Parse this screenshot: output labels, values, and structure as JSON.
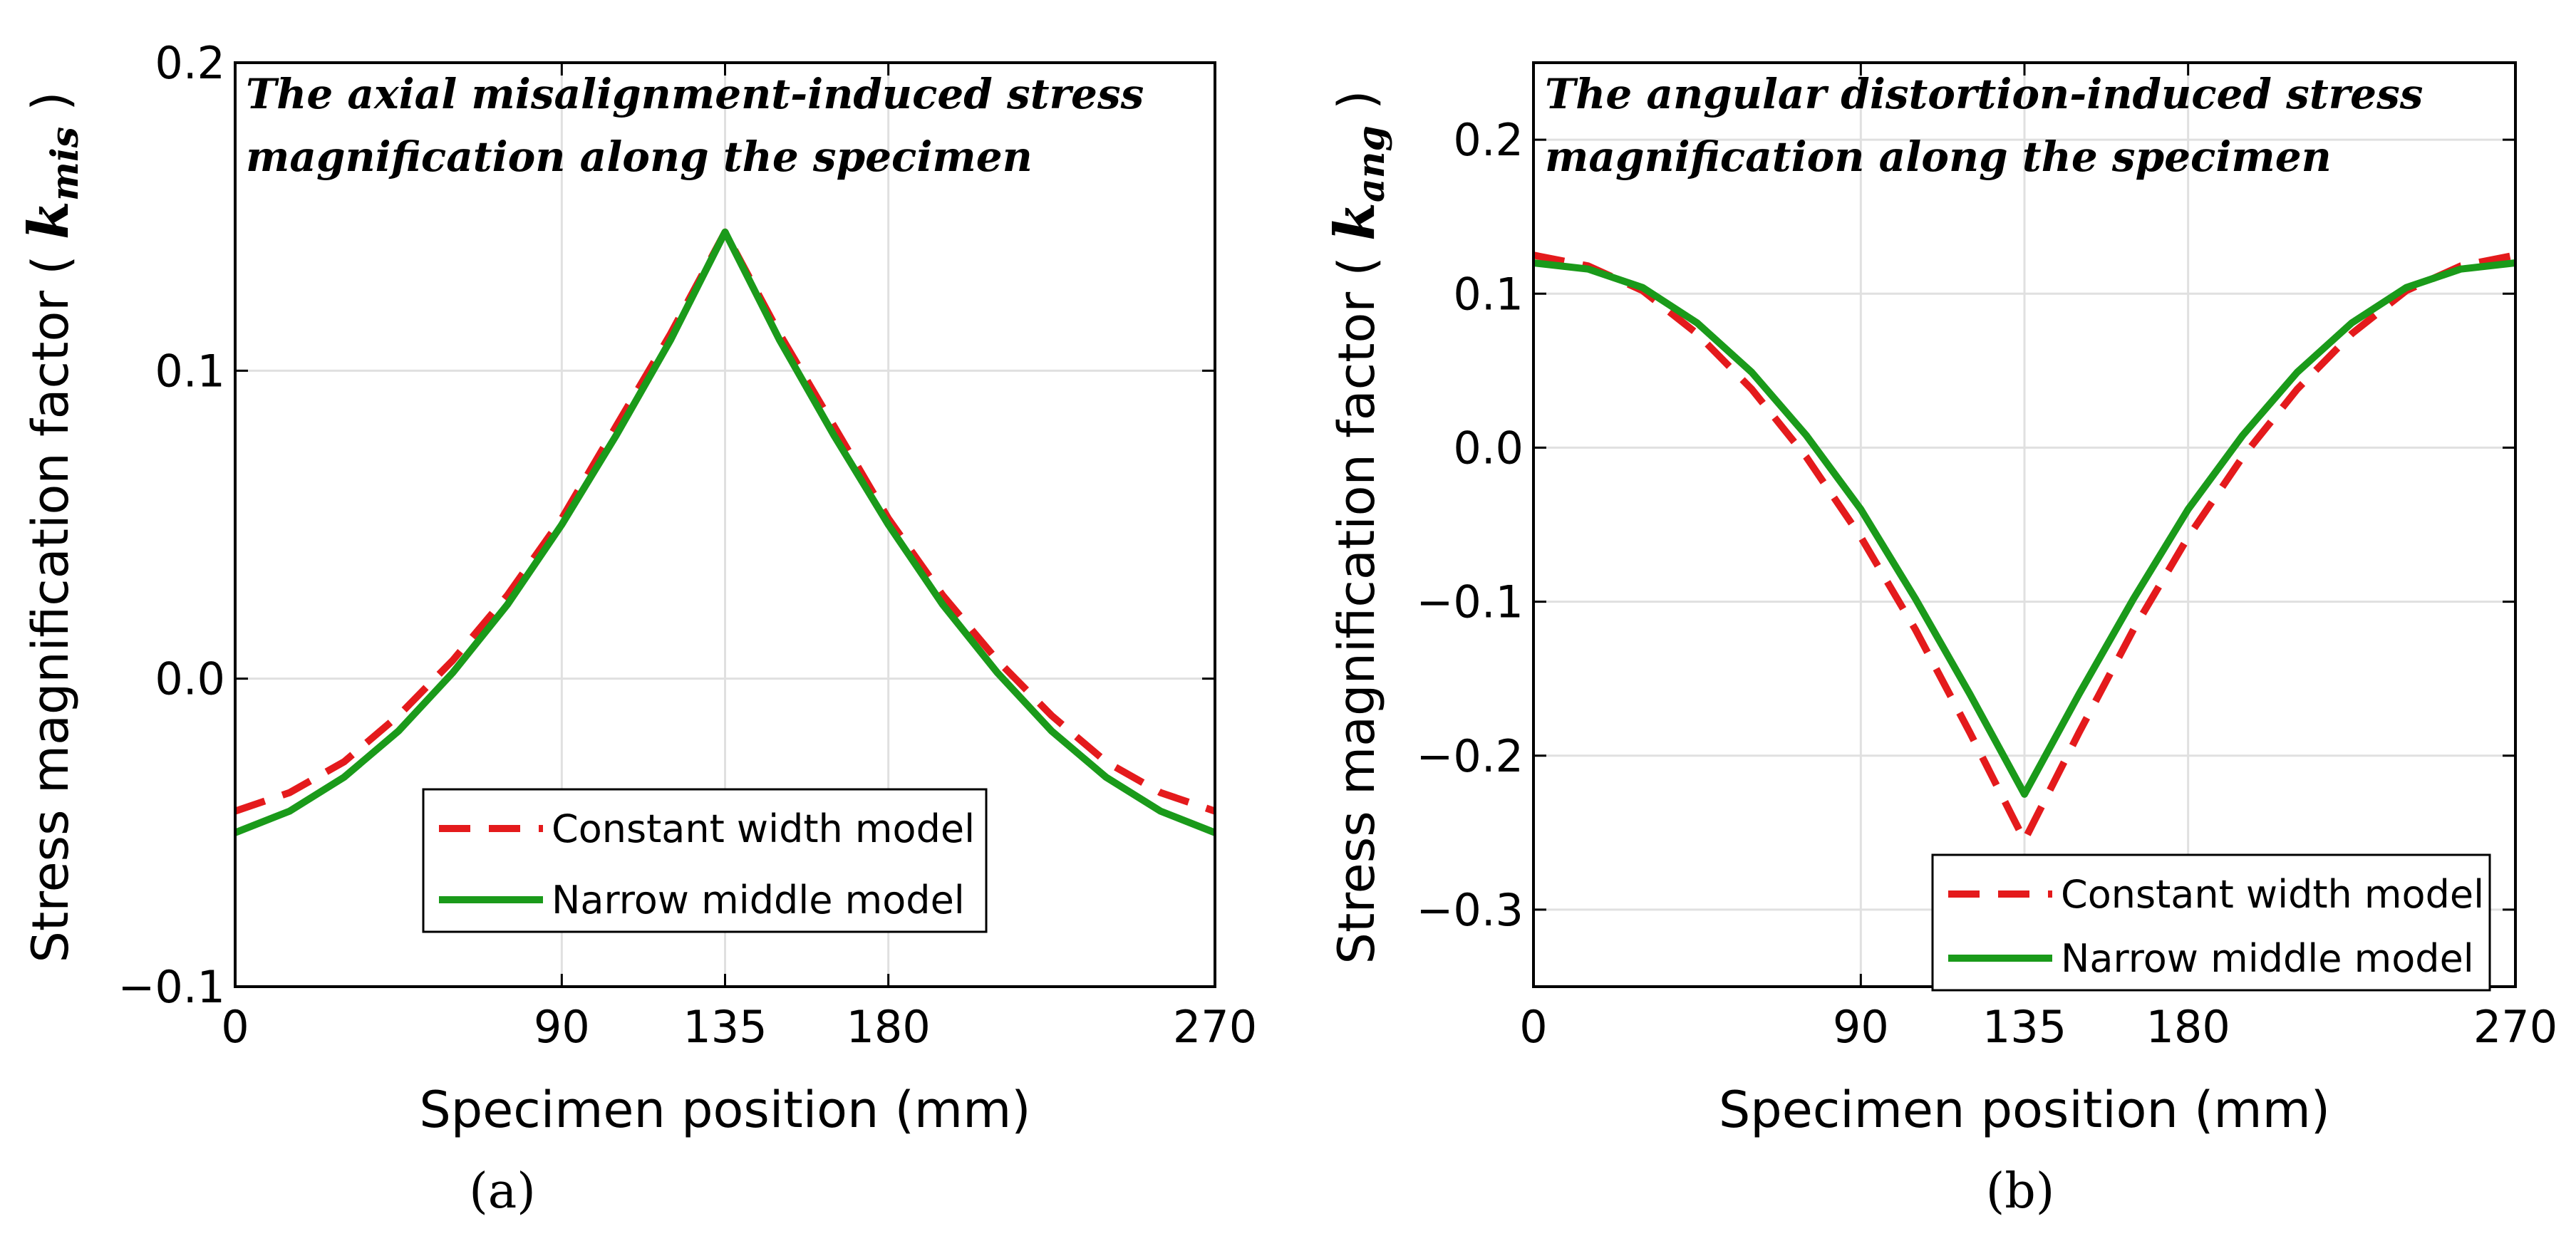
{
  "colors": {
    "constant": "#e41a1c",
    "narrow": "#1a9a1a",
    "grid": "#e0e0e0",
    "axis": "#000000"
  },
  "chart_data": [
    {
      "type": "line",
      "panel_label": "(a)",
      "annotation": [
        "The axial misalignment-induced stress",
        "magnification along the specimen"
      ],
      "xlabel": "Specimen position (mm)",
      "ylabel": "Stress magnification factor (",
      "ylabel_symbol": "k",
      "ylabel_subscript": "mis",
      "ylabel_close": ")",
      "xlim": [
        0,
        270
      ],
      "ylim": [
        -0.1,
        0.2
      ],
      "xticks": [
        0,
        90,
        135,
        180,
        270
      ],
      "yticks": [
        -0.1,
        0.0,
        0.1,
        0.2
      ],
      "ytick_labels": [
        "−0.1",
        "0.0",
        "0.1",
        "0.2"
      ],
      "grid": true,
      "legend_position": "bottom-center",
      "series": [
        {
          "name": "Constant width model",
          "style": "dashed",
          "x": [
            0,
            15,
            30,
            45,
            60,
            75,
            90,
            105,
            120,
            135,
            150,
            165,
            180,
            195,
            210,
            225,
            240,
            255,
            270
          ],
          "y": [
            -0.043,
            -0.037,
            -0.027,
            -0.012,
            0.006,
            0.027,
            0.052,
            0.082,
            0.112,
            0.145,
            0.112,
            0.082,
            0.052,
            0.027,
            0.006,
            -0.012,
            -0.027,
            -0.037,
            -0.043
          ]
        },
        {
          "name": "Narrow middle model",
          "style": "solid",
          "x": [
            0,
            15,
            30,
            45,
            60,
            75,
            90,
            105,
            120,
            135,
            150,
            165,
            180,
            195,
            210,
            225,
            240,
            255,
            270
          ],
          "y": [
            -0.05,
            -0.043,
            -0.032,
            -0.017,
            0.002,
            0.024,
            0.05,
            0.079,
            0.11,
            0.145,
            0.11,
            0.079,
            0.05,
            0.024,
            0.002,
            -0.017,
            -0.032,
            -0.043,
            -0.05
          ]
        }
      ]
    },
    {
      "type": "line",
      "panel_label": "(b)",
      "annotation": [
        "The angular distortion-induced stress",
        "magnification along the specimen"
      ],
      "xlabel": "Specimen position (mm)",
      "ylabel": "Stress magnification factor (",
      "ylabel_symbol": "k",
      "ylabel_subscript": "ang",
      "ylabel_close": ")",
      "xlim": [
        0,
        270
      ],
      "ylim": [
        -0.35,
        0.25
      ],
      "xticks": [
        0,
        90,
        135,
        180,
        270
      ],
      "yticks": [
        -0.3,
        -0.2,
        -0.1,
        0.0,
        0.1,
        0.2
      ],
      "ytick_labels": [
        "−0.3",
        "−0.2",
        "−0.1",
        "0.0",
        "0.1",
        "0.2"
      ],
      "grid": true,
      "legend_position": "bottom-right",
      "series": [
        {
          "name": "Constant width model",
          "style": "dashed",
          "x": [
            0,
            15,
            30,
            45,
            60,
            75,
            90,
            105,
            120,
            135,
            150,
            165,
            180,
            195,
            210,
            225,
            240,
            255,
            270
          ],
          "y": [
            0.125,
            0.118,
            0.102,
            0.074,
            0.038,
            -0.006,
            -0.058,
            -0.118,
            -0.185,
            -0.255,
            -0.185,
            -0.118,
            -0.058,
            -0.006,
            0.038,
            0.074,
            0.102,
            0.118,
            0.125
          ]
        },
        {
          "name": "Narrow middle model",
          "style": "solid",
          "x": [
            0,
            15,
            30,
            45,
            60,
            75,
            90,
            105,
            120,
            135,
            150,
            165,
            180,
            195,
            210,
            225,
            240,
            255,
            270
          ],
          "y": [
            0.12,
            0.116,
            0.104,
            0.081,
            0.049,
            0.008,
            -0.04,
            -0.098,
            -0.16,
            -0.225,
            -0.16,
            -0.098,
            -0.04,
            0.008,
            0.049,
            0.081,
            0.104,
            0.116,
            0.12
          ]
        }
      ]
    }
  ]
}
